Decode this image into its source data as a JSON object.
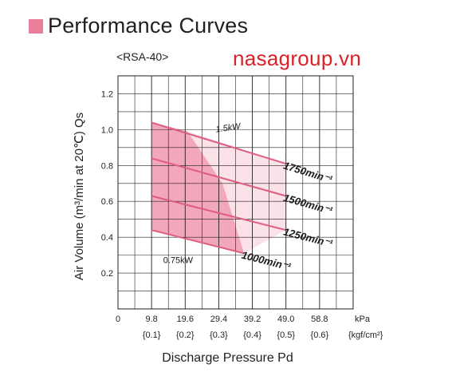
{
  "header": {
    "title": "Performance Curves",
    "model": "<RSA-40>",
    "watermark": "nasagroup.vn",
    "bullet_color": "#e97e9a",
    "watermark_color": "#d9222a"
  },
  "chart_data": {
    "type": "line",
    "title": "Performance Curves",
    "subtitle": "<RSA-40>",
    "xlabel": "Discharge Pressure Pd",
    "ylabel": "Air Volume (m³/min at 20℃) Qs",
    "x_unit": "kPa",
    "x_unit_alt": "{kgf/cm²}",
    "xlim": [
      0,
      68.6
    ],
    "ylim": [
      0,
      1.3
    ],
    "x_ticks": [
      0,
      9.8,
      19.6,
      29.4,
      39.2,
      49.0,
      58.8
    ],
    "x_tick_labels": [
      "0",
      "9.8",
      "19.6",
      "29.4",
      "39.2",
      "49.0",
      "58.8"
    ],
    "x_tick_labels_alt": [
      "",
      "{0.1}",
      "{0.2}",
      "{0.3}",
      "{0.4}",
      "{0.5}",
      "{0.6}"
    ],
    "y_ticks": [
      0.2,
      0.4,
      0.6,
      0.8,
      1.0,
      1.2
    ],
    "y_tick_labels": [
      "0.2",
      "0.4",
      "0.6",
      "0.8",
      "1.0",
      "1.2"
    ],
    "x_grid_step": 4.9,
    "y_grid_step": 0.1,
    "grid": true,
    "series": [
      {
        "name": "1750min⁻¹",
        "x": [
          9.8,
          49.0
        ],
        "y": [
          1.04,
          0.81
        ]
      },
      {
        "name": "1500min⁻¹",
        "x": [
          9.8,
          49.0
        ],
        "y": [
          0.84,
          0.63
        ]
      },
      {
        "name": "1250min⁻¹",
        "x": [
          9.8,
          49.0
        ],
        "y": [
          0.63,
          0.44
        ]
      },
      {
        "name": "1000min⁻¹",
        "x": [
          9.8,
          36.8
        ],
        "y": [
          0.44,
          0.31
        ]
      }
    ],
    "power_regions": [
      {
        "name": "0.75kW",
        "polygon": [
          [
            9.8,
            1.04
          ],
          [
            20.3,
            0.99
          ],
          [
            30.5,
            0.7
          ],
          [
            36.8,
            0.31
          ],
          [
            9.8,
            0.44
          ]
        ]
      },
      {
        "name": "1.5kW",
        "polygon": [
          [
            20.3,
            0.99
          ],
          [
            49.0,
            0.81
          ],
          [
            49.0,
            0.44
          ],
          [
            36.8,
            0.31
          ],
          [
            30.5,
            0.7
          ]
        ]
      }
    ],
    "annotations": [
      "1.5kW",
      "0.75kW"
    ],
    "colors": {
      "line": "#de5d82",
      "region_dark": "#f2a7bb",
      "region_light": "#fbe1e8",
      "grid": "#231f20"
    }
  }
}
